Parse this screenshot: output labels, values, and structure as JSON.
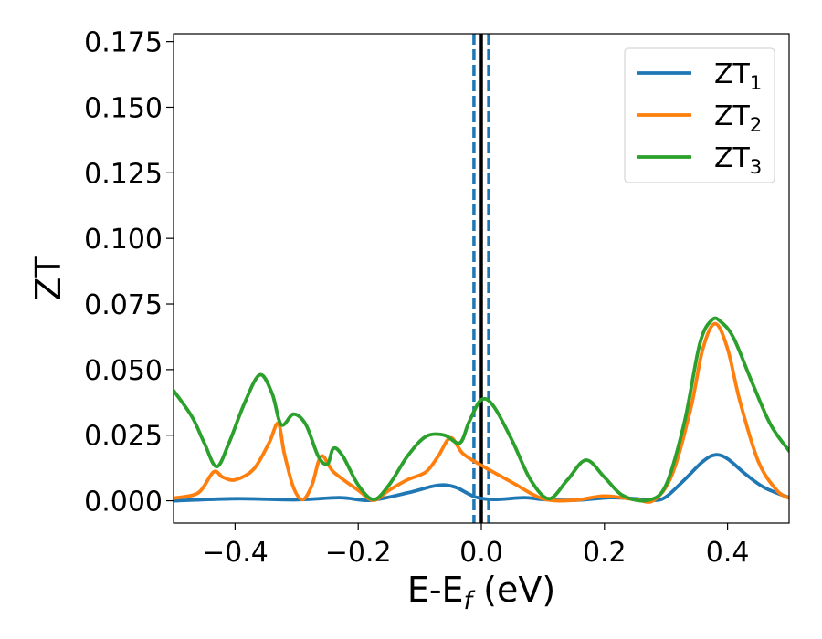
{
  "chart_data": {
    "type": "line",
    "xlabel": "E-E",
    "xlabel_sub": "f",
    "xlabel_suffix": " (eV)",
    "ylabel": "ZT",
    "xlim": [
      -0.5,
      0.5
    ],
    "ylim": [
      -0.0085,
      0.178
    ],
    "xticks": [
      -0.4,
      -0.2,
      0.0,
      0.2,
      0.4
    ],
    "xtick_labels": [
      "−0.4",
      "−0.2",
      "0.0",
      "0.2",
      "0.4"
    ],
    "yticks": [
      0.0,
      0.025,
      0.05,
      0.075,
      0.1,
      0.125,
      0.15,
      0.175
    ],
    "ytick_labels": [
      "0.000",
      "0.025",
      "0.050",
      "0.075",
      "0.100",
      "0.125",
      "0.150",
      "0.175"
    ],
    "grid": false,
    "legend_position": "top-right",
    "vlines": [
      {
        "x": 0.0,
        "style": "solid",
        "color": "#000000"
      },
      {
        "x": -0.012,
        "style": "dashed",
        "color": "#1f77b4"
      },
      {
        "x": 0.012,
        "style": "dashed",
        "color": "#1f77b4"
      }
    ],
    "series": [
      {
        "name": "ZT",
        "name_sub": "1",
        "color": "#1f77b4",
        "points": [
          [
            -0.5,
            0.0
          ],
          [
            -0.4,
            0.0008
          ],
          [
            -0.3,
            0.0004
          ],
          [
            -0.23,
            0.0012
          ],
          [
            -0.18,
            0.0002
          ],
          [
            -0.12,
            0.003
          ],
          [
            -0.08,
            0.0055
          ],
          [
            -0.06,
            0.006
          ],
          [
            -0.04,
            0.005
          ],
          [
            -0.01,
            0.0015
          ],
          [
            0.02,
            0.0005
          ],
          [
            0.07,
            0.0012
          ],
          [
            0.1,
            0.0005
          ],
          [
            0.15,
            0.0002
          ],
          [
            0.21,
            0.0012
          ],
          [
            0.25,
            0.0008
          ],
          [
            0.28,
            0.0002
          ],
          [
            0.3,
            0.0015
          ],
          [
            0.33,
            0.008
          ],
          [
            0.36,
            0.015
          ],
          [
            0.38,
            0.0175
          ],
          [
            0.4,
            0.016
          ],
          [
            0.43,
            0.01
          ],
          [
            0.46,
            0.005
          ],
          [
            0.5,
            0.0012
          ]
        ]
      },
      {
        "name": "ZT",
        "name_sub": "2",
        "color": "#ff7f0e",
        "points": [
          [
            -0.5,
            0.001
          ],
          [
            -0.46,
            0.003
          ],
          [
            -0.435,
            0.011
          ],
          [
            -0.42,
            0.009
          ],
          [
            -0.4,
            0.008
          ],
          [
            -0.37,
            0.012
          ],
          [
            -0.345,
            0.022
          ],
          [
            -0.33,
            0.0295
          ],
          [
            -0.32,
            0.018
          ],
          [
            -0.305,
            0.005
          ],
          [
            -0.29,
            0.0005
          ],
          [
            -0.275,
            0.006
          ],
          [
            -0.26,
            0.017
          ],
          [
            -0.24,
            0.011
          ],
          [
            -0.2,
            0.004
          ],
          [
            -0.175,
            0.0002
          ],
          [
            -0.15,
            0.004
          ],
          [
            -0.12,
            0.008
          ],
          [
            -0.09,
            0.011
          ],
          [
            -0.07,
            0.017
          ],
          [
            -0.05,
            0.024
          ],
          [
            -0.03,
            0.018
          ],
          [
            0.0,
            0.0135
          ],
          [
            0.05,
            0.007
          ],
          [
            0.1,
            0.0008
          ],
          [
            0.15,
            0.0002
          ],
          [
            0.2,
            0.0018
          ],
          [
            0.25,
            0.0005
          ],
          [
            0.28,
            0.0002
          ],
          [
            0.31,
            0.01
          ],
          [
            0.34,
            0.035
          ],
          [
            0.36,
            0.058
          ],
          [
            0.38,
            0.0675
          ],
          [
            0.4,
            0.058
          ],
          [
            0.42,
            0.038
          ],
          [
            0.45,
            0.015
          ],
          [
            0.48,
            0.004
          ],
          [
            0.5,
            0.001
          ]
        ]
      },
      {
        "name": "ZT",
        "name_sub": "3",
        "color": "#2ca02c",
        "points": [
          [
            -0.5,
            0.042
          ],
          [
            -0.47,
            0.032
          ],
          [
            -0.45,
            0.022
          ],
          [
            -0.43,
            0.013
          ],
          [
            -0.41,
            0.022
          ],
          [
            -0.385,
            0.037
          ],
          [
            -0.36,
            0.048
          ],
          [
            -0.34,
            0.041
          ],
          [
            -0.325,
            0.029
          ],
          [
            -0.305,
            0.033
          ],
          [
            -0.285,
            0.029
          ],
          [
            -0.265,
            0.017
          ],
          [
            -0.25,
            0.014
          ],
          [
            -0.24,
            0.02
          ],
          [
            -0.225,
            0.017
          ],
          [
            -0.2,
            0.006
          ],
          [
            -0.175,
            0.0005
          ],
          [
            -0.15,
            0.006
          ],
          [
            -0.12,
            0.017
          ],
          [
            -0.09,
            0.0245
          ],
          [
            -0.06,
            0.025
          ],
          [
            -0.035,
            0.022
          ],
          [
            -0.02,
            0.03
          ],
          [
            0.0,
            0.0385
          ],
          [
            0.02,
            0.036
          ],
          [
            0.05,
            0.023
          ],
          [
            0.08,
            0.008
          ],
          [
            0.11,
            0.0008
          ],
          [
            0.14,
            0.008
          ],
          [
            0.17,
            0.0155
          ],
          [
            0.2,
            0.009
          ],
          [
            0.23,
            0.002
          ],
          [
            0.27,
            0.0002
          ],
          [
            0.3,
            0.006
          ],
          [
            0.33,
            0.03
          ],
          [
            0.355,
            0.06
          ],
          [
            0.375,
            0.069
          ],
          [
            0.39,
            0.068
          ],
          [
            0.41,
            0.062
          ],
          [
            0.44,
            0.045
          ],
          [
            0.47,
            0.029
          ],
          [
            0.5,
            0.019
          ]
        ]
      }
    ]
  }
}
